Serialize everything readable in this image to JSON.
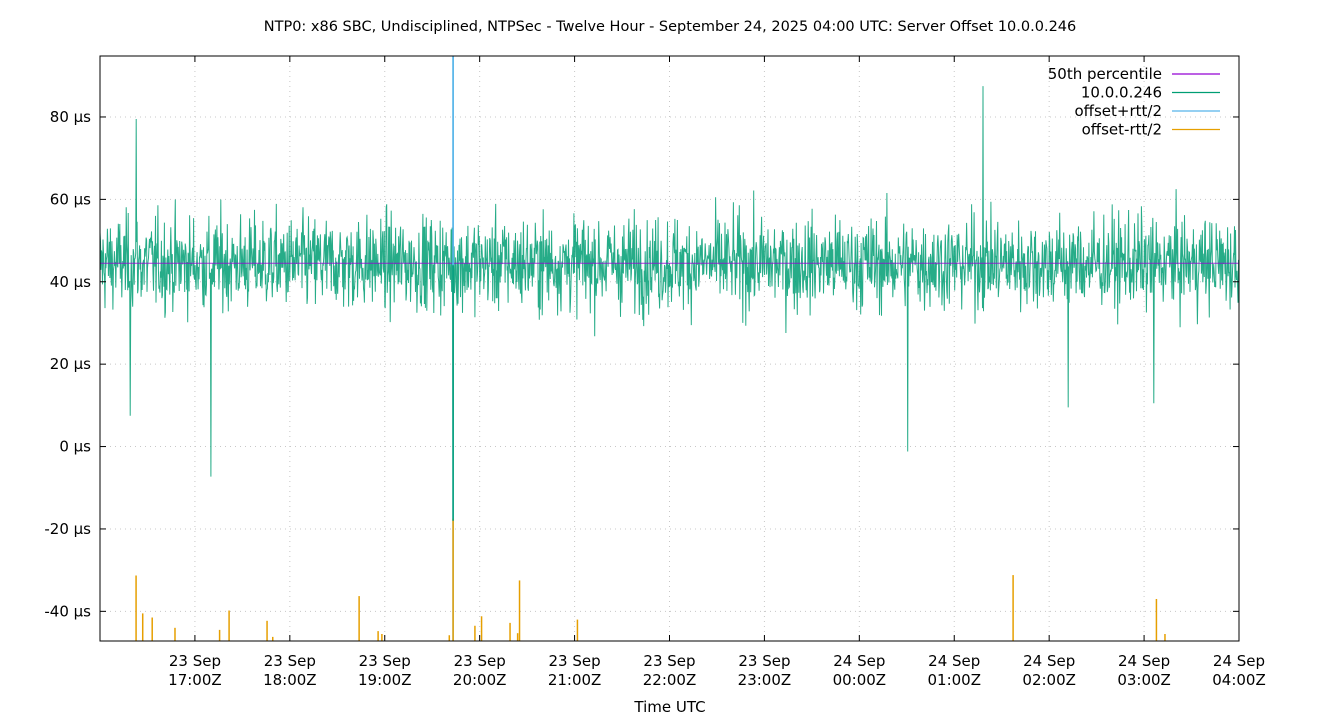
{
  "chart_data": {
    "type": "line",
    "title": "NTP0: x86 SBC, Undisciplined, NTPSec - Twelve Hour - September 24, 2025 04:00 UTC: Server Offset 10.0.0.246",
    "xlabel": "Time UTC",
    "ylabel": "",
    "ylim": [
      -47.2,
      94.8
    ],
    "yunit": "µs",
    "grid": true,
    "legend_position": "top-right inside",
    "y_ticks": [
      {
        "value": 80,
        "label": "80 µs"
      },
      {
        "value": 60,
        "label": "60 µs"
      },
      {
        "value": 40,
        "label": "40 µs"
      },
      {
        "value": 20,
        "label": "20 µs"
      },
      {
        "value": 0,
        "label": "0 µs"
      },
      {
        "value": -20,
        "label": "-20 µs"
      },
      {
        "value": -40,
        "label": "-40 µs"
      }
    ],
    "x_range_hours": [
      16.0,
      28.0
    ],
    "x_ticks": [
      {
        "hour": 17,
        "line1": "23 Sep",
        "line2": "17:00Z"
      },
      {
        "hour": 18,
        "line1": "23 Sep",
        "line2": "18:00Z"
      },
      {
        "hour": 19,
        "line1": "23 Sep",
        "line2": "19:00Z"
      },
      {
        "hour": 20,
        "line1": "23 Sep",
        "line2": "20:00Z"
      },
      {
        "hour": 21,
        "line1": "23 Sep",
        "line2": "21:00Z"
      },
      {
        "hour": 22,
        "line1": "23 Sep",
        "line2": "22:00Z"
      },
      {
        "hour": 23,
        "line1": "23 Sep",
        "line2": "23:00Z"
      },
      {
        "hour": 24,
        "line1": "24 Sep",
        "line2": "00:00Z"
      },
      {
        "hour": 25,
        "line1": "24 Sep",
        "line2": "01:00Z"
      },
      {
        "hour": 26,
        "line1": "24 Sep",
        "line2": "02:00Z"
      },
      {
        "hour": 27,
        "line1": "24 Sep",
        "line2": "03:00Z"
      },
      {
        "hour": 28,
        "line1": "24 Sep",
        "line2": "04:00Z"
      }
    ],
    "series": [
      {
        "name": "50th percentile",
        "color": "#9400d3",
        "type": "hline",
        "value": 44.5
      },
      {
        "name": "10.0.0.246",
        "color": "#009e73",
        "type": "noise",
        "mean": 44.5,
        "typical_range": [
          28,
          62
        ],
        "extremes": [
          {
            "hour": 16.32,
            "value": 7.5
          },
          {
            "hour": 16.38,
            "value": 79.5
          },
          {
            "hour": 17.17,
            "value": -7.3
          },
          {
            "hour": 19.72,
            "value": -18
          },
          {
            "hour": 24.51,
            "value": -1.2
          },
          {
            "hour": 25.3,
            "value": 87.5
          },
          {
            "hour": 26.2,
            "value": 9.5
          },
          {
            "hour": 27.1,
            "value": 10.5
          }
        ]
      },
      {
        "name": "offset+rtt/2",
        "color": "#56b4e9",
        "type": "spikes",
        "points": [
          {
            "hour": 19.72,
            "value": 94.8
          }
        ]
      },
      {
        "name": "offset-rtt/2",
        "color": "#e69f00",
        "type": "spikes",
        "points": [
          {
            "hour": 16.38,
            "value": -31.3
          },
          {
            "hour": 16.45,
            "value": -40.5
          },
          {
            "hour": 16.55,
            "value": -41.5
          },
          {
            "hour": 16.79,
            "value": -44.0
          },
          {
            "hour": 17.26,
            "value": -44.5
          },
          {
            "hour": 17.36,
            "value": -39.8
          },
          {
            "hour": 17.76,
            "value": -42.3
          },
          {
            "hour": 17.82,
            "value": -46.2
          },
          {
            "hour": 18.73,
            "value": -36.3
          },
          {
            "hour": 18.93,
            "value": -44.8
          },
          {
            "hour": 18.97,
            "value": -45.5
          },
          {
            "hour": 19.68,
            "value": -45.8
          },
          {
            "hour": 19.72,
            "value": -17.5
          },
          {
            "hour": 19.95,
            "value": -43.5
          },
          {
            "hour": 20.02,
            "value": -41.2
          },
          {
            "hour": 20.32,
            "value": -42.8
          },
          {
            "hour": 20.4,
            "value": -45.3
          },
          {
            "hour": 20.42,
            "value": -32.5
          },
          {
            "hour": 21.03,
            "value": -42.0
          },
          {
            "hour": 25.62,
            "value": -31.2
          },
          {
            "hour": 27.13,
            "value": -37.0
          },
          {
            "hour": 27.22,
            "value": -45.5
          }
        ]
      }
    ]
  },
  "legend": {
    "items": [
      {
        "label": "50th percentile",
        "color": "#9400d3"
      },
      {
        "label": "10.0.0.246",
        "color": "#009e73"
      },
      {
        "label": "offset+rtt/2",
        "color": "#56b4e9"
      },
      {
        "label": "offset-rtt/2",
        "color": "#e69f00"
      }
    ]
  }
}
